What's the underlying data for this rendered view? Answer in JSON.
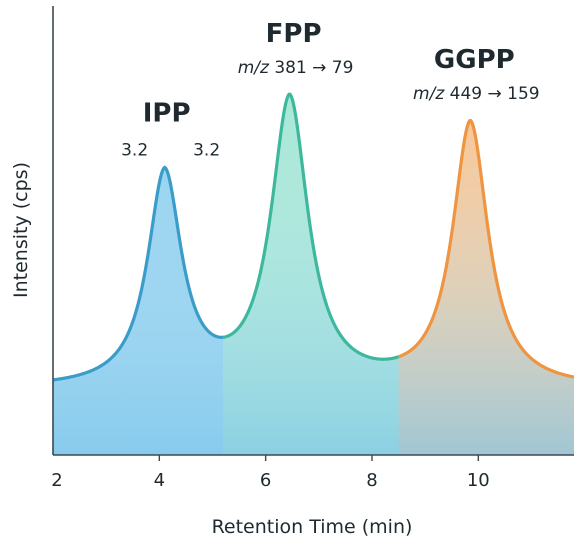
{
  "chart_data": {
    "type": "line",
    "xlabel": "Retention Time (min)",
    "ylabel": "Intensity (cps)",
    "xlim": [
      2,
      11.8
    ],
    "x_ticks": [
      2,
      4,
      6,
      8,
      10
    ],
    "ylim": [
      0,
      1
    ],
    "y_ticks_shown": false,
    "grid": false,
    "baseline": 0.19,
    "peaks": [
      {
        "name": "IPP",
        "retention_time": 4.1,
        "height": 0.74,
        "color": "#3a9cc8",
        "fill_color": "#8fd0ef",
        "annotation_left": "3.2",
        "annotation_right": "3.2"
      },
      {
        "name": "FPP",
        "retention_time": 6.45,
        "height": 1.0,
        "color": "#3db89c",
        "fill_color": "#9ee6cf",
        "annotation_prefix": "m/z",
        "annotation": "381 → 79"
      },
      {
        "name": "GGPP",
        "retention_time": 9.85,
        "height": 0.92,
        "color": "#ef9440",
        "fill_color": "#f9c38e",
        "annotation_prefix": "m/z",
        "annotation": "449 → 159"
      }
    ]
  }
}
